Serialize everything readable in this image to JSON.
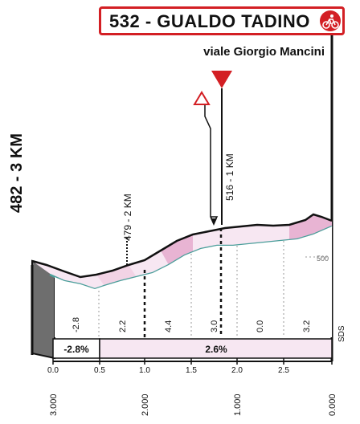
{
  "header": {
    "title": "532 - GUALDO TADINO",
    "subtitle": "viale Giorgio Mancini",
    "title_icon": "cyclist-icon",
    "accent_color": "#d31f24"
  },
  "start_label": "482 - 3 KM",
  "marker": {
    "label": "516 - 1 KM",
    "icon": "flag-triangle-icon",
    "sign_icon": "turn-warning-icon"
  },
  "km_marker": {
    "label": "479 - 2 KM"
  },
  "altitude_ref": "500",
  "finish_text": "SDS",
  "gradients": [
    "-2.8",
    "2.2",
    "4.4",
    "3.0",
    "0.0",
    "3.2"
  ],
  "avg_gradients": [
    "-2.8%",
    "2.6%"
  ],
  "axis_top": [
    "0.0",
    "0.5",
    "1.0",
    "1.5",
    "2.0",
    "2.5"
  ],
  "axis_bottom": [
    "3.000",
    "2.000",
    "1.000",
    "0.000"
  ]
}
